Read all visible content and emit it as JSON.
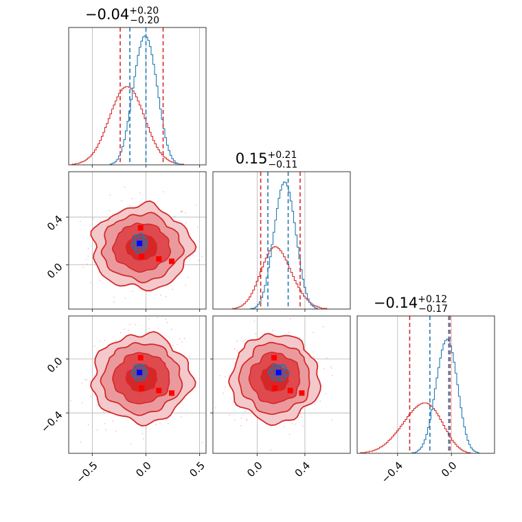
{
  "chart_data": {
    "type": "corner",
    "colors": {
      "series_a": "#1f77b4",
      "series_b": "#d62728",
      "marker_a": "#0000ff",
      "marker_b": "#ff0000",
      "scatter": "#f4a6b8"
    },
    "grid": true,
    "parameters": [
      {
        "title_main": "−0.04",
        "title_plus": "+0.20",
        "title_minus": "−0.20",
        "range": [
          -0.72,
          0.56
        ],
        "ticks": [
          -0.5,
          0.0,
          0.5
        ],
        "tick_labels": [
          "−0.5",
          "0.0",
          "0.5"
        ],
        "lines_a": [
          -0.15,
          0.0
        ],
        "lines_b": [
          -0.24,
          0.16
        ]
      },
      {
        "title_main": "0.15",
        "title_plus": "+0.21",
        "title_minus": "−0.11",
        "range": [
          -0.37,
          0.78
        ],
        "ticks": [
          0.0,
          0.4
        ],
        "tick_labels": [
          "0.0",
          "0.4"
        ],
        "lines_a": [
          0.09,
          0.26
        ],
        "lines_b": [
          0.03,
          0.36
        ]
      },
      {
        "title_main": "−0.14",
        "title_plus": "+0.12",
        "title_minus": "−0.17",
        "range": [
          -0.7,
          0.32
        ],
        "ticks": [
          -0.4,
          0.0
        ],
        "tick_labels": [
          "−0.4",
          "0.0"
        ],
        "lines_a": [
          -0.16,
          -0.02
        ],
        "lines_b": [
          -0.31,
          -0.01
        ]
      }
    ],
    "series": [
      {
        "name": "",
        "color": "#1f77b4",
        "center": [
          -0.06,
          0.18,
          -0.1
        ],
        "spread": [
          0.07,
          0.08,
          0.06
        ]
      },
      {
        "name": "",
        "color": "#d62728",
        "center": [
          -0.04,
          0.15,
          -0.14
        ],
        "spread": [
          0.2,
          0.16,
          0.15
        ]
      }
    ],
    "histogram_a": {
      "p0": [
        0,
        0,
        0,
        0,
        0,
        0,
        0,
        0,
        0,
        0,
        0,
        0,
        0,
        0,
        0,
        0,
        0,
        0,
        0,
        0,
        0,
        0,
        0,
        0,
        1,
        2,
        3,
        5,
        8,
        13,
        19,
        27,
        37,
        50,
        64,
        79,
        96,
        113,
        130,
        146,
        161,
        173,
        182,
        188,
        190,
        188,
        183,
        174,
        162,
        148,
        133,
        116,
        99,
        82,
        67,
        53,
        40,
        29,
        21,
        14,
        9,
        6,
        3,
        2,
        1,
        0,
        0,
        0,
        0,
        0,
        0,
        0,
        0,
        0,
        0,
        0,
        0,
        0,
        0,
        0
      ],
      "p1": [
        0,
        0,
        0,
        0,
        0,
        0,
        0,
        0,
        0,
        0,
        0,
        0,
        0,
        0,
        0,
        0,
        0,
        0,
        0,
        0,
        0,
        0,
        1,
        1,
        2,
        4,
        7,
        11,
        17,
        25,
        35,
        47,
        61,
        77,
        95,
        113,
        131,
        148,
        163,
        175,
        183,
        187,
        186,
        181,
        172,
        159,
        144,
        127,
        109,
        91,
        74,
        58,
        44,
        32,
        23,
        15,
        10,
        6,
        4,
        2,
        1,
        0,
        0,
        0,
        0,
        0,
        0,
        0,
        0,
        0,
        0,
        0,
        0,
        0,
        0,
        0,
        0,
        0,
        0,
        0
      ],
      "p2": [
        0,
        0,
        0,
        0,
        0,
        0,
        0,
        0,
        0,
        0,
        0,
        0,
        0,
        0,
        0,
        0,
        0,
        0,
        0,
        0,
        0,
        0,
        0,
        0,
        0,
        0,
        0,
        0,
        0,
        0,
        0,
        0,
        1,
        1,
        2,
        4,
        6,
        9,
        14,
        20,
        28,
        38,
        50,
        64,
        79,
        95,
        111,
        126,
        140,
        152,
        161,
        166,
        168,
        165,
        158,
        148,
        134,
        118,
        101,
        84,
        67,
        52,
        39,
        28,
        19,
        13,
        8,
        5,
        3,
        2,
        1,
        0,
        0,
        0,
        0,
        0,
        0,
        0,
        0,
        0
      ]
    },
    "histogram_b": {
      "p0": [
        0,
        0,
        1,
        1,
        2,
        2,
        3,
        4,
        5,
        6,
        8,
        10,
        12,
        15,
        18,
        22,
        26,
        31,
        36,
        42,
        48,
        55,
        61,
        68,
        75,
        82,
        88,
        94,
        100,
        105,
        109,
        112,
        114,
        115,
        115,
        114,
        112,
        109,
        105,
        100,
        94,
        88,
        82,
        75,
        68,
        61,
        55,
        48,
        42,
        36,
        31,
        26,
        22,
        18,
        15,
        12,
        10,
        8,
        6,
        5,
        4,
        3,
        2,
        2,
        1,
        1,
        1,
        0,
        0,
        0,
        0,
        0,
        0,
        0,
        0,
        0,
        0,
        0,
        0,
        0
      ],
      "p1": [
        0,
        0,
        0,
        0,
        0,
        0,
        0,
        0,
        0,
        0,
        0,
        1,
        1,
        2,
        3,
        4,
        6,
        8,
        11,
        14,
        18,
        23,
        28,
        34,
        41,
        48,
        55,
        62,
        69,
        75,
        81,
        86,
        89,
        91,
        92,
        91,
        89,
        86,
        82,
        77,
        72,
        66,
        60,
        54,
        48,
        42,
        37,
        32,
        27,
        23,
        19,
        16,
        13,
        10,
        8,
        6,
        5,
        4,
        3,
        2,
        1,
        1,
        1,
        0,
        0,
        0,
        0,
        0,
        0,
        0,
        0,
        0,
        0,
        0,
        0,
        0
      ],
      "p2": [
        0,
        0,
        1,
        1,
        1,
        2,
        2,
        3,
        3,
        4,
        5,
        6,
        7,
        9,
        10,
        12,
        14,
        16,
        19,
        21,
        24,
        27,
        30,
        33,
        36,
        40,
        43,
        47,
        50,
        54,
        57,
        60,
        63,
        66,
        68,
        70,
        72,
        73,
        74,
        74,
        74,
        73,
        71,
        69,
        66,
        63,
        59,
        55,
        50,
        46,
        41,
        36,
        32,
        27,
        23,
        19,
        16,
        13,
        10,
        8,
        6,
        4,
        3,
        2,
        1,
        1,
        0,
        0,
        0,
        0,
        0,
        0,
        0,
        0,
        0,
        0,
        0,
        0,
        0,
        0
      ]
    },
    "markers_b": [
      {
        "x": -0.07,
        "y": 0.34
      },
      {
        "x": -0.06,
        "y": 0.1
      },
      {
        "x": 0.1,
        "y": 0.08
      },
      {
        "x": 0.23,
        "y": 0.06
      }
    ]
  }
}
